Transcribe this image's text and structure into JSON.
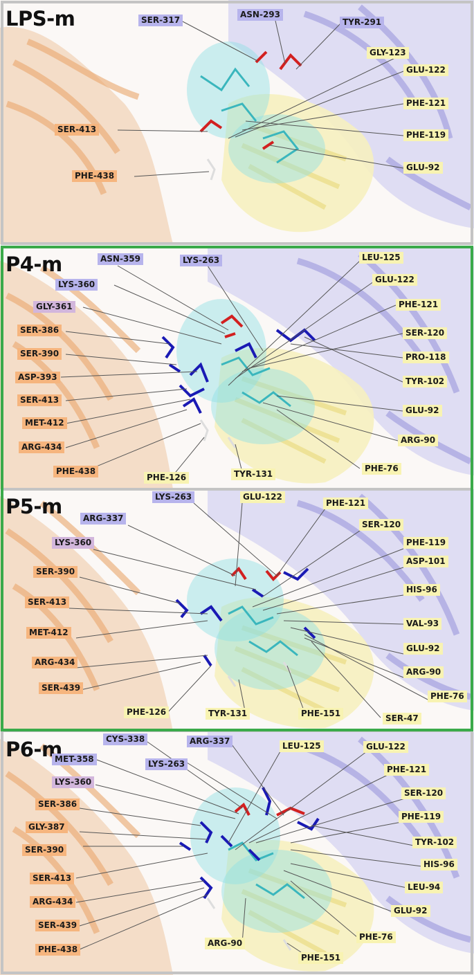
{
  "colors": {
    "blue_label": "#b7b4ec",
    "orange_label": "#f6b57e",
    "yellow_label": "#f8f3b2",
    "purple_label": "#d2b6dc",
    "ligand_cyan": "#6fd3d6",
    "residue_red": "#d22020",
    "residue_blue": "#1a1ab4",
    "panel_border_grey": "#c4c4c4",
    "panel_border_green": "#3aaa4a"
  },
  "panels": [
    {
      "title": "LPS-m",
      "border": "grey",
      "labels": [
        {
          "text": "SER-317",
          "color": "blue"
        },
        {
          "text": "ASN-293",
          "color": "blue"
        },
        {
          "text": "TYR-291",
          "color": "blue"
        },
        {
          "text": "GLY-123",
          "color": "yellow"
        },
        {
          "text": "GLU-122",
          "color": "yellow"
        },
        {
          "text": "PHE-121",
          "color": "yellow"
        },
        {
          "text": "SER-413",
          "color": "orange"
        },
        {
          "text": "PHE-119",
          "color": "yellow"
        },
        {
          "text": "PHE-438",
          "color": "orange"
        },
        {
          "text": "GLU-92",
          "color": "yellow"
        }
      ]
    },
    {
      "title": "P4-m",
      "border": "green",
      "labels": [
        {
          "text": "ASN-359",
          "color": "blue"
        },
        {
          "text": "LYS-263",
          "color": "blue"
        },
        {
          "text": "LEU-125",
          "color": "yellow"
        },
        {
          "text": "LYS-360",
          "color": "blue"
        },
        {
          "text": "GLU-122",
          "color": "yellow"
        },
        {
          "text": "GLY-361",
          "color": "purple"
        },
        {
          "text": "PHE-121",
          "color": "yellow"
        },
        {
          "text": "SER-386",
          "color": "orange"
        },
        {
          "text": "SER-120",
          "color": "yellow"
        },
        {
          "text": "SER-390",
          "color": "orange"
        },
        {
          "text": "PRO-118",
          "color": "yellow"
        },
        {
          "text": "ASP-393",
          "color": "orange"
        },
        {
          "text": "TYR-102",
          "color": "yellow"
        },
        {
          "text": "SER-413",
          "color": "orange"
        },
        {
          "text": "GLU-92",
          "color": "yellow"
        },
        {
          "text": "MET-412",
          "color": "orange"
        },
        {
          "text": "ARG-434",
          "color": "orange"
        },
        {
          "text": "ARG-90",
          "color": "yellow"
        },
        {
          "text": "PHE-76",
          "color": "yellow"
        },
        {
          "text": "PHE-438",
          "color": "orange"
        },
        {
          "text": "TYR-131",
          "color": "yellow"
        },
        {
          "text": "PHE-126",
          "color": "yellow"
        }
      ]
    },
    {
      "title": "P5-m",
      "border": "green",
      "labels": [
        {
          "text": "LYS-263",
          "color": "blue"
        },
        {
          "text": "GLU-122",
          "color": "yellow"
        },
        {
          "text": "PHE-121",
          "color": "yellow"
        },
        {
          "text": "ARG-337",
          "color": "blue"
        },
        {
          "text": "SER-120",
          "color": "yellow"
        },
        {
          "text": "LYS-360",
          "color": "purple"
        },
        {
          "text": "PHE-119",
          "color": "yellow"
        },
        {
          "text": "ASP-101",
          "color": "yellow"
        },
        {
          "text": "SER-390",
          "color": "orange"
        },
        {
          "text": "HIS-96",
          "color": "yellow"
        },
        {
          "text": "SER-413",
          "color": "orange"
        },
        {
          "text": "VAL-93",
          "color": "yellow"
        },
        {
          "text": "MET-412",
          "color": "orange"
        },
        {
          "text": "GLU-92",
          "color": "yellow"
        },
        {
          "text": "ARG-434",
          "color": "orange"
        },
        {
          "text": "ARG-90",
          "color": "yellow"
        },
        {
          "text": "SER-439",
          "color": "orange"
        },
        {
          "text": "PHE-76",
          "color": "yellow"
        },
        {
          "text": "PHE-126",
          "color": "yellow"
        },
        {
          "text": "TYR-131",
          "color": "yellow"
        },
        {
          "text": "PHE-151",
          "color": "yellow"
        },
        {
          "text": "SER-47",
          "color": "yellow"
        }
      ]
    },
    {
      "title": "P6-m",
      "border": "grey",
      "labels": [
        {
          "text": "CYS-338",
          "color": "blue"
        },
        {
          "text": "ARG-337",
          "color": "blue"
        },
        {
          "text": "LEU-125",
          "color": "yellow"
        },
        {
          "text": "GLU-122",
          "color": "yellow"
        },
        {
          "text": "MET-358",
          "color": "blue"
        },
        {
          "text": "LYS-263",
          "color": "blue"
        },
        {
          "text": "PHE-121",
          "color": "yellow"
        },
        {
          "text": "LYS-360",
          "color": "purple"
        },
        {
          "text": "SER-120",
          "color": "yellow"
        },
        {
          "text": "SER-386",
          "color": "orange"
        },
        {
          "text": "PHE-119",
          "color": "yellow"
        },
        {
          "text": "GLY-387",
          "color": "orange"
        },
        {
          "text": "TYR-102",
          "color": "yellow"
        },
        {
          "text": "SER-390",
          "color": "orange"
        },
        {
          "text": "HIS-96",
          "color": "yellow"
        },
        {
          "text": "SER-413",
          "color": "orange"
        },
        {
          "text": "LEU-94",
          "color": "yellow"
        },
        {
          "text": "ARG-434",
          "color": "orange"
        },
        {
          "text": "GLU-92",
          "color": "yellow"
        },
        {
          "text": "SER-439",
          "color": "orange"
        },
        {
          "text": "PHE-76",
          "color": "yellow"
        },
        {
          "text": "PHE-438",
          "color": "orange"
        },
        {
          "text": "ARG-90",
          "color": "yellow"
        },
        {
          "text": "PHE-151",
          "color": "yellow"
        }
      ]
    }
  ]
}
